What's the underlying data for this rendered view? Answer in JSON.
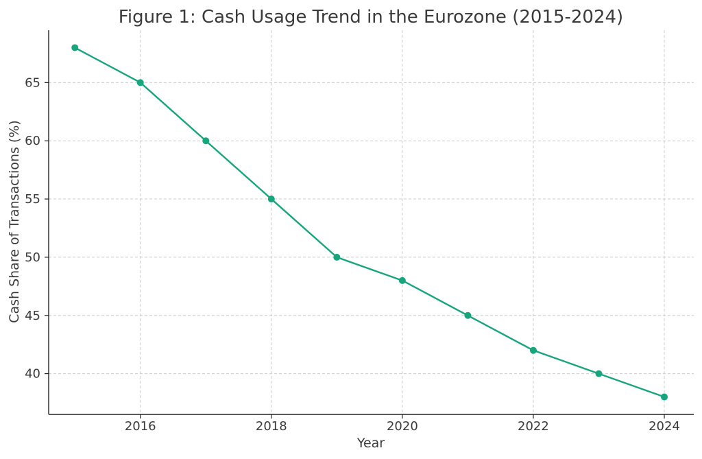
{
  "chart_data": {
    "type": "line",
    "title": "Figure 1: Cash Usage Trend in the Eurozone (2015-2024)",
    "xlabel": "Year",
    "ylabel": "Cash Share of Transactions (%)",
    "x": [
      2015,
      2016,
      2017,
      2018,
      2019,
      2020,
      2021,
      2022,
      2023,
      2024
    ],
    "series": [
      {
        "values": [
          68,
          65,
          60,
          55,
          50,
          48,
          45,
          42,
          40,
          38
        ],
        "color": "#17a57e"
      }
    ],
    "xlim": [
      2014.6,
      2024.45
    ],
    "ylim": [
      36.5,
      69.5
    ],
    "xticks": [
      "2016",
      "2018",
      "2020",
      "2022",
      "2024"
    ],
    "yticks": [
      "40",
      "45",
      "50",
      "55",
      "60",
      "65"
    ],
    "grid": true,
    "marker": "circle"
  }
}
